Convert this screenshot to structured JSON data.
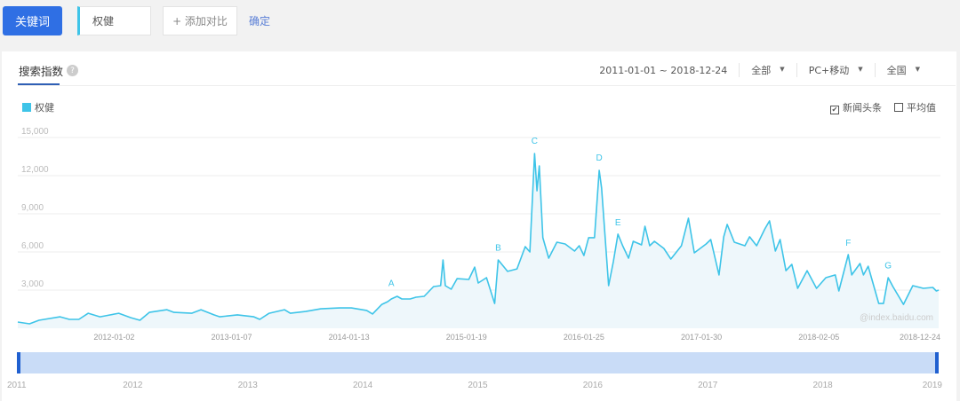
{
  "toolbar": {
    "keyword_button": "关键词",
    "keyword_value": "权健",
    "add_compare": "+ 添加对比",
    "confirm": "确定"
  },
  "tab": {
    "label": "搜索指数",
    "help_icon": "?"
  },
  "filters": {
    "date_range": "2011-01-01 ~ 2018-12-24",
    "source": "全部",
    "device": "PC+移动",
    "region": "全国",
    "caret": "▼"
  },
  "options": {
    "news": "新闻头条",
    "news_checked": true,
    "average": "平均值",
    "average_checked": false,
    "check_mark": "✔"
  },
  "colors": {
    "line": "#3ec4e8",
    "fill": "#eef7fb",
    "accent": "#2f6fe4",
    "navigator": "#c9dcf7",
    "handle": "#2060d0"
  },
  "watermark": "@index.baidu.com",
  "chart_data": {
    "type": "line",
    "title": "搜索指数",
    "legend": [
      "权健"
    ],
    "legend_position": "top-left",
    "ylim": [
      0,
      15000
    ],
    "yticks": [
      "3,000",
      "6,000",
      "9,000",
      "12,000",
      "15,000"
    ],
    "ytick_values": [
      3000,
      6000,
      9000,
      12000,
      15000
    ],
    "xlim": [
      2011.18,
      2019.02
    ],
    "xticks": [
      {
        "label": "2012-01-02",
        "x": 2012.0
      },
      {
        "label": "2013-01-07",
        "x": 2013.0
      },
      {
        "label": "2014-01-13",
        "x": 2014.0
      },
      {
        "label": "2015-01-19",
        "x": 2015.0
      },
      {
        "label": "2016-01-25",
        "x": 2016.0
      },
      {
        "label": "2017-01-30",
        "x": 2017.0
      },
      {
        "label": "2018-02-05",
        "x": 2018.0
      },
      {
        "label": "2018-12-24",
        "x": 2018.98
      }
    ],
    "grid": true,
    "series": [
      {
        "name": "权健",
        "points": [
          [
            2011.18,
            490
          ],
          [
            2011.28,
            350
          ],
          [
            2011.36,
            630
          ],
          [
            2011.54,
            900
          ],
          [
            2011.62,
            700
          ],
          [
            2011.7,
            700
          ],
          [
            2011.78,
            1180
          ],
          [
            2011.88,
            900
          ],
          [
            2012.04,
            1180
          ],
          [
            2012.14,
            840
          ],
          [
            2012.22,
            630
          ],
          [
            2012.3,
            1250
          ],
          [
            2012.45,
            1460
          ],
          [
            2012.51,
            1250
          ],
          [
            2012.66,
            1180
          ],
          [
            2012.74,
            1460
          ],
          [
            2012.85,
            1050
          ],
          [
            2012.9,
            900
          ],
          [
            2013.05,
            1050
          ],
          [
            2013.19,
            900
          ],
          [
            2013.24,
            700
          ],
          [
            2013.32,
            1180
          ],
          [
            2013.45,
            1460
          ],
          [
            2013.5,
            1180
          ],
          [
            2013.63,
            1320
          ],
          [
            2013.76,
            1530
          ],
          [
            2013.92,
            1600
          ],
          [
            2014.02,
            1600
          ],
          [
            2014.15,
            1400
          ],
          [
            2014.2,
            1120
          ],
          [
            2014.28,
            1880
          ],
          [
            2014.33,
            2090
          ],
          [
            2014.36,
            2300
          ],
          [
            2014.41,
            2510
          ],
          [
            2014.45,
            2300
          ],
          [
            2014.52,
            2300
          ],
          [
            2014.57,
            2440
          ],
          [
            2014.64,
            2510
          ],
          [
            2014.72,
            3280
          ],
          [
            2014.78,
            3350
          ],
          [
            2014.8,
            5370
          ],
          [
            2014.82,
            3350
          ],
          [
            2014.87,
            3070
          ],
          [
            2014.92,
            3900
          ],
          [
            2015.02,
            3840
          ],
          [
            2015.07,
            4810
          ],
          [
            2015.1,
            3560
          ],
          [
            2015.17,
            3980
          ],
          [
            2015.24,
            1950
          ],
          [
            2015.27,
            5370
          ],
          [
            2015.35,
            4470
          ],
          [
            2015.43,
            4670
          ],
          [
            2015.5,
            6420
          ],
          [
            2015.54,
            6000
          ],
          [
            2015.58,
            13740
          ],
          [
            2015.6,
            10810
          ],
          [
            2015.62,
            12770
          ],
          [
            2015.65,
            7120
          ],
          [
            2015.7,
            5510
          ],
          [
            2015.77,
            6770
          ],
          [
            2015.84,
            6630
          ],
          [
            2015.92,
            6070
          ],
          [
            2015.96,
            6490
          ],
          [
            2016.0,
            5720
          ],
          [
            2016.04,
            7120
          ],
          [
            2016.09,
            7120
          ],
          [
            2016.13,
            12420
          ],
          [
            2016.15,
            11020
          ],
          [
            2016.21,
            3350
          ],
          [
            2016.25,
            5230
          ],
          [
            2016.29,
            7400
          ],
          [
            2016.33,
            6490
          ],
          [
            2016.38,
            5510
          ],
          [
            2016.42,
            6840
          ],
          [
            2016.49,
            6560
          ],
          [
            2016.52,
            8020
          ],
          [
            2016.56,
            6490
          ],
          [
            2016.6,
            6840
          ],
          [
            2016.68,
            6280
          ],
          [
            2016.74,
            5440
          ],
          [
            2016.83,
            6490
          ],
          [
            2016.89,
            8650
          ],
          [
            2016.94,
            5930
          ],
          [
            2017.04,
            6630
          ],
          [
            2017.08,
            6980
          ],
          [
            2017.15,
            4190
          ],
          [
            2017.19,
            7190
          ],
          [
            2017.22,
            8160
          ],
          [
            2017.28,
            6770
          ],
          [
            2017.37,
            6490
          ],
          [
            2017.41,
            7190
          ],
          [
            2017.47,
            6490
          ],
          [
            2017.54,
            7810
          ],
          [
            2017.58,
            8440
          ],
          [
            2017.63,
            6070
          ],
          [
            2017.67,
            6980
          ],
          [
            2017.72,
            4530
          ],
          [
            2017.77,
            5020
          ],
          [
            2017.82,
            3140
          ],
          [
            2017.9,
            4530
          ],
          [
            2017.98,
            3140
          ],
          [
            2018.06,
            3980
          ],
          [
            2018.14,
            4190
          ],
          [
            2018.17,
            2930
          ],
          [
            2018.25,
            5790
          ],
          [
            2018.28,
            4190
          ],
          [
            2018.35,
            5090
          ],
          [
            2018.38,
            4190
          ],
          [
            2018.42,
            4880
          ],
          [
            2018.51,
            1950
          ],
          [
            2018.55,
            1950
          ],
          [
            2018.59,
            3980
          ],
          [
            2018.63,
            3280
          ],
          [
            2018.72,
            1880
          ],
          [
            2018.8,
            3350
          ],
          [
            2018.89,
            3140
          ],
          [
            2018.97,
            3210
          ],
          [
            2019.0,
            2930
          ],
          [
            2019.02,
            3000
          ]
        ]
      }
    ],
    "annotations": [
      {
        "label": "A",
        "x": 2014.36,
        "y": 3300
      },
      {
        "label": "B",
        "x": 2015.27,
        "y": 6100
      },
      {
        "label": "C",
        "x": 2015.58,
        "y": 14500
      },
      {
        "label": "D",
        "x": 2016.13,
        "y": 13200
      },
      {
        "label": "E",
        "x": 2016.29,
        "y": 8100
      },
      {
        "label": "F",
        "x": 2018.25,
        "y": 6500
      },
      {
        "label": "G",
        "x": 2018.59,
        "y": 4700
      }
    ],
    "navigator": {
      "labels": [
        "2011",
        "2012",
        "2013",
        "2014",
        "2015",
        "2016",
        "2017",
        "2018",
        "2019"
      ],
      "range": [
        2011,
        2019
      ],
      "selected": [
        2011,
        2019
      ]
    }
  }
}
